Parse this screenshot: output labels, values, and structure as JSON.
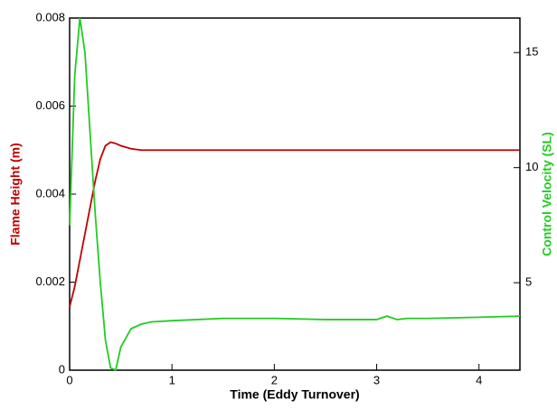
{
  "chart_data": {
    "type": "line",
    "x_label": "Time (Eddy Turnover)",
    "y_label": "Flame Height (m)",
    "y2_label": "Control Velocity (SL)",
    "x": [
      0,
      0.05,
      0.1,
      0.15,
      0.2,
      0.25,
      0.3,
      0.35,
      0.4,
      0.45,
      0.5,
      0.6,
      0.7,
      0.8,
      1,
      1.5,
      2,
      2.5,
      3,
      3.1,
      3.2,
      3.3,
      3.5,
      4,
      4.4
    ],
    "series": [
      {
        "name": "Flame Height (m)",
        "color": "#c00000",
        "values": [
          0.00144,
          0.0019,
          0.0025,
          0.0031,
          0.0037,
          0.0043,
          0.0048,
          0.0051,
          0.00518,
          0.00515,
          0.0051,
          0.00503,
          0.005,
          0.005,
          0.005,
          0.005,
          0.005,
          0.005,
          0.005,
          0.005,
          0.005,
          0.005,
          0.005,
          0.005,
          0.005
        ]
      },
      {
        "name": "Control Velocity (SL)",
        "color": "#22cc22",
        "axis": "y2",
        "values": [
          7.5,
          14,
          16.5,
          15,
          11.5,
          8,
          5,
          2.5,
          1.3,
          1.2,
          2.2,
          3.0,
          3.2,
          3.3,
          3.35,
          3.45,
          3.45,
          3.4,
          3.4,
          3.55,
          3.4,
          3.45,
          3.45,
          3.5,
          3.55
        ]
      }
    ],
    "xlim": [
      0,
      4.4
    ],
    "xticks": [
      0,
      1,
      2,
      3,
      4
    ],
    "ylim": [
      0,
      0.008
    ],
    "yticks": [
      0,
      0.002,
      0.004,
      0.006,
      0.008
    ],
    "y2lim": [
      1.2,
      16.5
    ],
    "y2ticks": [
      5,
      10,
      15
    ]
  }
}
